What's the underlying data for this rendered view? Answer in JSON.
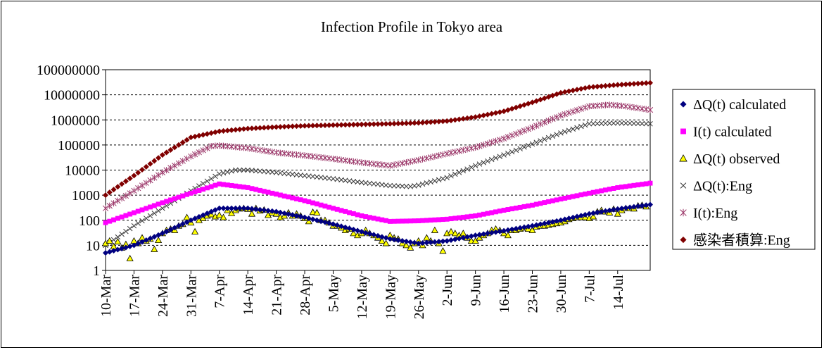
{
  "chart_data": {
    "type": "line",
    "title": "Infection Profile in Tokyo area",
    "xlabel": "",
    "ylabel": "",
    "y_scale": "log",
    "ylim": [
      1,
      100000000
    ],
    "y_ticks": [
      "1",
      "10",
      "100",
      "1000",
      "10000",
      "100000",
      "1000000",
      "10000000",
      "100000000"
    ],
    "x_range": [
      "2020-03-10",
      "2020-07-22"
    ],
    "x_ticks": [
      "10-Mar",
      "17-Mar",
      "24-Mar",
      "31-Mar",
      "7-Apr",
      "14-Apr",
      "21-Apr",
      "28-Apr",
      "5-May",
      "12-May",
      "19-May",
      "26-May",
      "2-Jun",
      "9-Jun",
      "16-Jun",
      "23-Jun",
      "30-Jun",
      "7-Jul",
      "14-Jul"
    ],
    "grid": "horizontal",
    "legend_position": "right",
    "series": [
      {
        "name": "ΔQ(t) calculated",
        "color": "#000080",
        "marker": "diamond",
        "points": [
          [
            "2020-03-10",
            5
          ],
          [
            "2020-03-17",
            10
          ],
          [
            "2020-03-24",
            30
          ],
          [
            "2020-03-31",
            100
          ],
          [
            "2020-04-07",
            300
          ],
          [
            "2020-04-14",
            300
          ],
          [
            "2020-04-21",
            220
          ],
          [
            "2020-04-28",
            130
          ],
          [
            "2020-05-05",
            70
          ],
          [
            "2020-05-12",
            35
          ],
          [
            "2020-05-19",
            18
          ],
          [
            "2020-05-26",
            12
          ],
          [
            "2020-06-02",
            15
          ],
          [
            "2020-06-09",
            25
          ],
          [
            "2020-06-16",
            38
          ],
          [
            "2020-06-23",
            60
          ],
          [
            "2020-06-30",
            100
          ],
          [
            "2020-07-07",
            180
          ],
          [
            "2020-07-14",
            280
          ],
          [
            "2020-07-22",
            420
          ]
        ]
      },
      {
        "name": "I(t) calculated",
        "color": "#ff00ff",
        "marker": "square",
        "points": [
          [
            "2020-03-10",
            80
          ],
          [
            "2020-03-17",
            200
          ],
          [
            "2020-03-24",
            500
          ],
          [
            "2020-03-31",
            1200
          ],
          [
            "2020-04-07",
            2800
          ],
          [
            "2020-04-14",
            2000
          ],
          [
            "2020-04-21",
            1100
          ],
          [
            "2020-04-28",
            600
          ],
          [
            "2020-05-05",
            300
          ],
          [
            "2020-05-12",
            150
          ],
          [
            "2020-05-19",
            90
          ],
          [
            "2020-05-26",
            95
          ],
          [
            "2020-06-02",
            110
          ],
          [
            "2020-06-09",
            150
          ],
          [
            "2020-06-16",
            250
          ],
          [
            "2020-06-23",
            400
          ],
          [
            "2020-06-30",
            700
          ],
          [
            "2020-07-07",
            1200
          ],
          [
            "2020-07-14",
            2000
          ],
          [
            "2020-07-22",
            3000
          ]
        ]
      },
      {
        "name": "ΔQ(t) observed",
        "color": "#ffff00",
        "marker": "triangle",
        "points": [
          [
            "2020-03-10",
            12
          ],
          [
            "2020-03-11",
            15
          ],
          [
            "2020-03-12",
            9
          ],
          [
            "2020-03-13",
            14
          ],
          [
            "2020-03-14",
            8
          ],
          [
            "2020-03-15",
            11
          ],
          [
            "2020-03-16",
            3
          ],
          [
            "2020-03-17",
            15
          ],
          [
            "2020-03-18",
            12
          ],
          [
            "2020-03-19",
            20
          ],
          [
            "2020-03-20",
            15
          ],
          [
            "2020-03-21",
            18
          ],
          [
            "2020-03-22",
            7
          ],
          [
            "2020-03-23",
            16
          ],
          [
            "2020-03-24",
            30
          ],
          [
            "2020-03-25",
            40
          ],
          [
            "2020-03-26",
            45
          ],
          [
            "2020-03-27",
            40
          ],
          [
            "2020-03-28",
            60
          ],
          [
            "2020-03-29",
            70
          ],
          [
            "2020-03-30",
            130
          ],
          [
            "2020-03-31",
            80
          ],
          [
            "2020-04-01",
            35
          ],
          [
            "2020-04-02",
            100
          ],
          [
            "2020-04-03",
            120
          ],
          [
            "2020-04-04",
            150
          ],
          [
            "2020-04-05",
            170
          ],
          [
            "2020-04-06",
            140
          ],
          [
            "2020-04-07",
            160
          ],
          [
            "2020-04-08",
            130
          ],
          [
            "2020-04-09",
            250
          ],
          [
            "2020-04-10",
            190
          ],
          [
            "2020-04-11",
            250
          ],
          [
            "2020-04-12",
            290
          ],
          [
            "2020-04-13",
            300
          ],
          [
            "2020-04-14",
            280
          ],
          [
            "2020-04-15",
            180
          ],
          [
            "2020-04-16",
            300
          ],
          [
            "2020-04-17",
            240
          ],
          [
            "2020-04-18",
            260
          ],
          [
            "2020-04-19",
            160
          ],
          [
            "2020-04-20",
            200
          ],
          [
            "2020-04-21",
            180
          ],
          [
            "2020-04-22",
            130
          ],
          [
            "2020-04-23",
            150
          ],
          [
            "2020-04-24",
            200
          ],
          [
            "2020-04-25",
            150
          ],
          [
            "2020-04-26",
            180
          ],
          [
            "2020-04-27",
            150
          ],
          [
            "2020-04-28",
            120
          ],
          [
            "2020-04-29",
            90
          ],
          [
            "2020-04-30",
            210
          ],
          [
            "2020-05-01",
            200
          ],
          [
            "2020-05-02",
            100
          ],
          [
            "2020-05-03",
            100
          ],
          [
            "2020-05-04",
            80
          ],
          [
            "2020-05-05",
            60
          ],
          [
            "2020-05-06",
            60
          ],
          [
            "2020-05-07",
            50
          ],
          [
            "2020-05-08",
            40
          ],
          [
            "2020-05-09",
            45
          ],
          [
            "2020-05-10",
            30
          ],
          [
            "2020-05-11",
            25
          ],
          [
            "2020-05-12",
            30
          ],
          [
            "2020-05-13",
            40
          ],
          [
            "2020-05-14",
            30
          ],
          [
            "2020-05-15",
            25
          ],
          [
            "2020-05-16",
            20
          ],
          [
            "2020-05-17",
            15
          ],
          [
            "2020-05-18",
            12
          ],
          [
            "2020-05-19",
            25
          ],
          [
            "2020-05-20",
            20
          ],
          [
            "2020-05-21",
            18
          ],
          [
            "2020-05-22",
            12
          ],
          [
            "2020-05-23",
            10
          ],
          [
            "2020-05-24",
            8
          ],
          [
            "2020-05-25",
            12
          ],
          [
            "2020-05-26",
            15
          ],
          [
            "2020-05-27",
            10
          ],
          [
            "2020-05-28",
            20
          ],
          [
            "2020-05-29",
            15
          ],
          [
            "2020-05-30",
            40
          ],
          [
            "2020-05-31",
            12
          ],
          [
            "2020-06-01",
            6
          ],
          [
            "2020-06-02",
            30
          ],
          [
            "2020-06-03",
            35
          ],
          [
            "2020-06-04",
            30
          ],
          [
            "2020-06-05",
            25
          ],
          [
            "2020-06-06",
            30
          ],
          [
            "2020-06-07",
            20
          ],
          [
            "2020-06-08",
            15
          ],
          [
            "2020-06-09",
            15
          ],
          [
            "2020-06-10",
            20
          ],
          [
            "2020-06-11",
            25
          ],
          [
            "2020-06-12",
            30
          ],
          [
            "2020-06-13",
            40
          ],
          [
            "2020-06-14",
            45
          ],
          [
            "2020-06-15",
            40
          ],
          [
            "2020-06-16",
            30
          ],
          [
            "2020-06-17",
            25
          ],
          [
            "2020-06-18",
            40
          ],
          [
            "2020-06-19",
            40
          ],
          [
            "2020-06-20",
            45
          ],
          [
            "2020-06-21",
            50
          ],
          [
            "2020-06-22",
            45
          ],
          [
            "2020-06-23",
            40
          ],
          [
            "2020-06-24",
            55
          ],
          [
            "2020-06-25",
            60
          ],
          [
            "2020-06-26",
            60
          ],
          [
            "2020-06-27",
            65
          ],
          [
            "2020-06-28",
            70
          ],
          [
            "2020-06-29",
            75
          ],
          [
            "2020-06-30",
            80
          ],
          [
            "2020-07-01",
            90
          ],
          [
            "2020-07-02",
            110
          ],
          [
            "2020-07-03",
            120
          ],
          [
            "2020-07-04",
            130
          ],
          [
            "2020-07-05",
            130
          ],
          [
            "2020-07-06",
            130
          ],
          [
            "2020-07-07",
            120
          ],
          [
            "2020-07-08",
            140
          ],
          [
            "2020-07-09",
            220
          ],
          [
            "2020-07-10",
            250
          ],
          [
            "2020-07-11",
            220
          ],
          [
            "2020-07-12",
            200
          ],
          [
            "2020-07-13",
            280
          ],
          [
            "2020-07-14",
            180
          ],
          [
            "2020-07-15",
            250
          ],
          [
            "2020-07-16",
            300
          ],
          [
            "2020-07-17",
            300
          ],
          [
            "2020-07-18",
            290
          ],
          [
            "2020-07-19",
            380
          ],
          [
            "2020-07-20",
            400
          ],
          [
            "2020-07-21",
            350
          ]
        ]
      },
      {
        "name": "ΔQ(t):Eng",
        "color": "#333333",
        "marker": "x",
        "points": [
          [
            "2020-03-10",
            10
          ],
          [
            "2020-03-17",
            60
          ],
          [
            "2020-03-24",
            300
          ],
          [
            "2020-03-31",
            1500
          ],
          [
            "2020-04-07",
            7000
          ],
          [
            "2020-04-11",
            10000
          ],
          [
            "2020-04-14",
            10000
          ],
          [
            "2020-04-21",
            8000
          ],
          [
            "2020-04-28",
            6000
          ],
          [
            "2020-05-05",
            4500
          ],
          [
            "2020-05-12",
            3200
          ],
          [
            "2020-05-19",
            2400
          ],
          [
            "2020-05-24",
            2200
          ],
          [
            "2020-05-26",
            2500
          ],
          [
            "2020-06-02",
            5000
          ],
          [
            "2020-06-09",
            15000
          ],
          [
            "2020-06-16",
            40000
          ],
          [
            "2020-06-23",
            110000
          ],
          [
            "2020-06-30",
            300000
          ],
          [
            "2020-07-07",
            700000
          ],
          [
            "2020-07-14",
            750000
          ],
          [
            "2020-07-22",
            700000
          ]
        ]
      },
      {
        "name": "I(t):Eng",
        "color": "#993366",
        "marker": "asterisk",
        "points": [
          [
            "2020-03-10",
            300
          ],
          [
            "2020-03-17",
            1500
          ],
          [
            "2020-03-24",
            8000
          ],
          [
            "2020-03-31",
            35000
          ],
          [
            "2020-04-05",
            90000
          ],
          [
            "2020-04-07",
            95000
          ],
          [
            "2020-04-14",
            75000
          ],
          [
            "2020-04-21",
            50000
          ],
          [
            "2020-04-28",
            38000
          ],
          [
            "2020-05-05",
            28000
          ],
          [
            "2020-05-12",
            20000
          ],
          [
            "2020-05-19",
            15000
          ],
          [
            "2020-05-26",
            25000
          ],
          [
            "2020-06-02",
            45000
          ],
          [
            "2020-06-09",
            80000
          ],
          [
            "2020-06-16",
            180000
          ],
          [
            "2020-06-23",
            500000
          ],
          [
            "2020-06-30",
            1500000
          ],
          [
            "2020-07-07",
            3500000
          ],
          [
            "2020-07-12",
            4000000
          ],
          [
            "2020-07-16",
            3500000
          ],
          [
            "2020-07-22",
            2500000
          ]
        ]
      },
      {
        "name": "感染者積算:Eng",
        "color": "#800000",
        "marker": "diamond",
        "points": [
          [
            "2020-03-10",
            1000
          ],
          [
            "2020-03-17",
            6000
          ],
          [
            "2020-03-24",
            40000
          ],
          [
            "2020-03-31",
            200000
          ],
          [
            "2020-04-07",
            350000
          ],
          [
            "2020-04-14",
            450000
          ],
          [
            "2020-04-21",
            520000
          ],
          [
            "2020-04-28",
            580000
          ],
          [
            "2020-05-05",
            620000
          ],
          [
            "2020-05-12",
            660000
          ],
          [
            "2020-05-19",
            700000
          ],
          [
            "2020-05-26",
            760000
          ],
          [
            "2020-06-02",
            900000
          ],
          [
            "2020-06-09",
            1300000
          ],
          [
            "2020-06-16",
            2200000
          ],
          [
            "2020-06-23",
            5000000
          ],
          [
            "2020-06-30",
            12000000
          ],
          [
            "2020-07-07",
            20000000
          ],
          [
            "2020-07-14",
            25000000
          ],
          [
            "2020-07-22",
            30000000
          ]
        ]
      }
    ]
  }
}
